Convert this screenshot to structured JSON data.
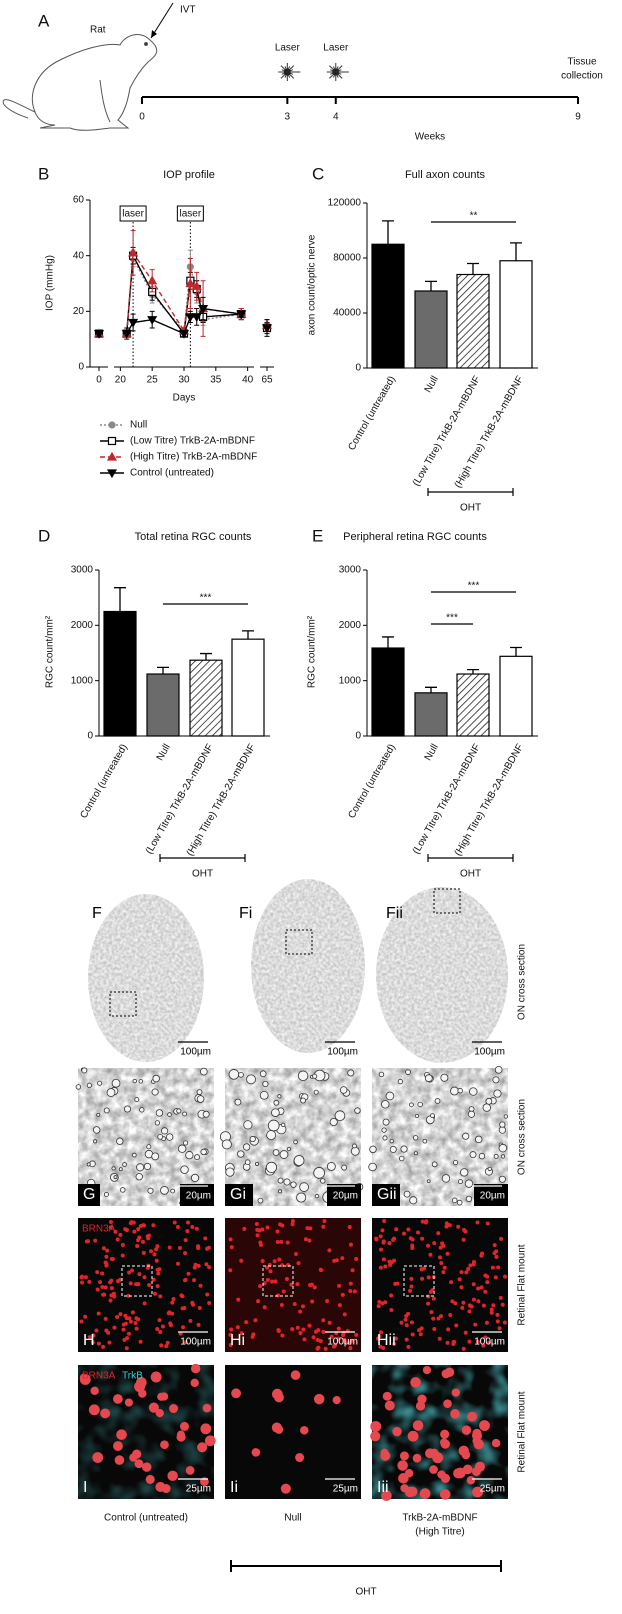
{
  "panel_a": {
    "letter": "A",
    "subject": "Rat",
    "injection": "IVT",
    "xlabel": "Weeks",
    "xlim": [
      0,
      9
    ],
    "xticks": [
      0,
      3,
      4,
      9
    ],
    "events": [
      {
        "label": "Laser",
        "x": 3
      },
      {
        "label": "Laser",
        "x": 4
      }
    ],
    "end_label": [
      "Tissue",
      "collection"
    ]
  },
  "chart_data": [
    {
      "letter": "B",
      "type": "line",
      "title": "IOP profile",
      "ylabel": "IOP (mmHg)",
      "xlabel": "Days",
      "x": [
        0,
        21,
        22,
        25,
        30,
        31,
        32,
        33,
        39,
        65
      ],
      "xlim": [
        [
          -2.5,
          2.5
        ],
        [
          19,
          41
        ],
        [
          63,
          67
        ]
      ],
      "xticks": [
        0,
        20,
        25,
        30,
        35,
        40,
        65
      ],
      "ylim": [
        0,
        60
      ],
      "yticks": [
        0,
        20,
        40,
        60
      ],
      "annotations": [
        {
          "text": "laser",
          "x": 22
        },
        {
          "text": "laser",
          "x": 31
        }
      ],
      "legend": "bottom",
      "series": [
        {
          "name": "Null",
          "color": "#8a8a8a",
          "line": "dotted",
          "marker": "circle",
          "marker_fill": "#8a8a8a",
          "values": [
            12,
            12,
            39,
            26,
            13,
            36,
            27,
            17,
            19,
            15
          ],
          "errors": [
            1,
            1,
            3,
            3,
            1,
            6,
            4,
            2,
            2,
            2
          ]
        },
        {
          "name": "(Low Titre) TrkB-2A-mBDNF",
          "color": "#000000",
          "line": "solid",
          "marker": "square",
          "marker_fill": "#ffffff",
          "values": [
            12,
            12,
            40,
            27,
            12,
            31,
            28,
            18,
            19,
            14
          ],
          "errors": [
            1,
            1,
            3,
            3,
            1,
            3,
            3,
            2,
            2,
            2
          ]
        },
        {
          "name": "(High Titre) TrkB-2A-mBDNF",
          "color": "#c0272d",
          "line": "dashed",
          "marker": "triangle",
          "marker_fill": "#c0272d",
          "values": [
            12,
            12,
            41,
            31,
            13,
            30,
            29,
            21,
            19,
            15
          ],
          "errors": [
            1,
            1,
            8,
            4,
            1,
            9,
            5,
            10,
            2,
            2
          ]
        },
        {
          "name": "Control (untreated)",
          "color": "#000000",
          "line": "solid",
          "marker": "triangle-down",
          "marker_fill": "#000000",
          "values": [
            12,
            12,
            16,
            17,
            12,
            18,
            18,
            21,
            19,
            14
          ],
          "errors": [
            1,
            2,
            3,
            3,
            1,
            2,
            3,
            4,
            1,
            3
          ]
        }
      ]
    },
    {
      "letter": "C",
      "type": "bar",
      "title": "Full axon counts",
      "ylabel": "axon count/optic nerve",
      "categories": [
        "Control (untreated)",
        "Null",
        "(Low Titre) TrkB-2A-mBDNF",
        "(High Titre) TrkB-2A-mBDNF"
      ],
      "values": [
        90000,
        56000,
        68000,
        78000
      ],
      "errors": [
        17000,
        7000,
        8000,
        13000
      ],
      "fills": [
        "#000000",
        "#6b6b6b",
        "hatch",
        "#ffffff"
      ],
      "ylim": [
        0,
        120000
      ],
      "yticks": [
        0,
        40000,
        80000,
        120000
      ],
      "significance": [
        {
          "label": "**",
          "from": 1,
          "to": 3
        }
      ],
      "group": {
        "label": "OHT",
        "from": 1,
        "to": 3
      }
    },
    {
      "letter": "D",
      "type": "bar",
      "title": "Total retina RGC counts",
      "ylabel": "RGC count/mm²",
      "categories": [
        "Control (untreated)",
        "Null",
        "(Low Titre) TrkB-2A-mBDNF",
        "(High Titre) TrkB-2A-mBDNF"
      ],
      "values": [
        2250,
        1120,
        1370,
        1750
      ],
      "errors": [
        430,
        120,
        120,
        150
      ],
      "fills": [
        "#000000",
        "#6b6b6b",
        "hatch",
        "#ffffff"
      ],
      "ylim": [
        0,
        3000
      ],
      "yticks": [
        0,
        1000,
        2000,
        3000
      ],
      "significance": [
        {
          "label": "***",
          "from": 1,
          "to": 3
        }
      ],
      "group": {
        "label": "OHT",
        "from": 1,
        "to": 3
      }
    },
    {
      "letter": "E",
      "type": "bar",
      "title": "Peripheral retina RGC counts",
      "ylabel": "RGC count/mm²",
      "categories": [
        "Control (untreated)",
        "Null",
        "(Low Titre) TrkB-2A-mBDNF",
        "(High Titre) TrkB-2A-mBDNF"
      ],
      "values": [
        1590,
        780,
        1120,
        1440
      ],
      "errors": [
        200,
        100,
        80,
        160
      ],
      "fills": [
        "#000000",
        "#6b6b6b",
        "hatch",
        "#ffffff"
      ],
      "ylim": [
        0,
        3000
      ],
      "yticks": [
        0,
        1000,
        2000,
        3000
      ],
      "significance": [
        {
          "label": "***",
          "from": 1,
          "to": 2
        },
        {
          "label": "***",
          "from": 1,
          "to": 3
        }
      ],
      "group": {
        "label": "OHT",
        "from": 1,
        "to": 3
      }
    }
  ],
  "micrographs": {
    "rows": [
      {
        "labels": [
          "F",
          "Fi",
          "Fii"
        ],
        "scale_bar": "100µm",
        "side_label": "ON cross section"
      },
      {
        "labels": [
          "G",
          "Gi",
          "Gii"
        ],
        "scale_bar": "20µm",
        "side_label": "ON cross section"
      },
      {
        "labels": [
          "H",
          "Hi",
          "Hii"
        ],
        "scale_bar": "100µm",
        "side_label": "Retinal Flat mount",
        "stains": [
          "BRN3A"
        ]
      },
      {
        "labels": [
          "I",
          "Ii",
          "Iii"
        ],
        "scale_bar": "25µm",
        "side_label": "Retinal Flat mount",
        "stains": [
          "BRN3A",
          "TrkB"
        ]
      }
    ],
    "columns": [
      [
        "Control (untreated)"
      ],
      [
        "Null"
      ],
      [
        "TrkB-2A-mBDNF",
        "(High Titre)"
      ]
    ],
    "group": "OHT"
  }
}
